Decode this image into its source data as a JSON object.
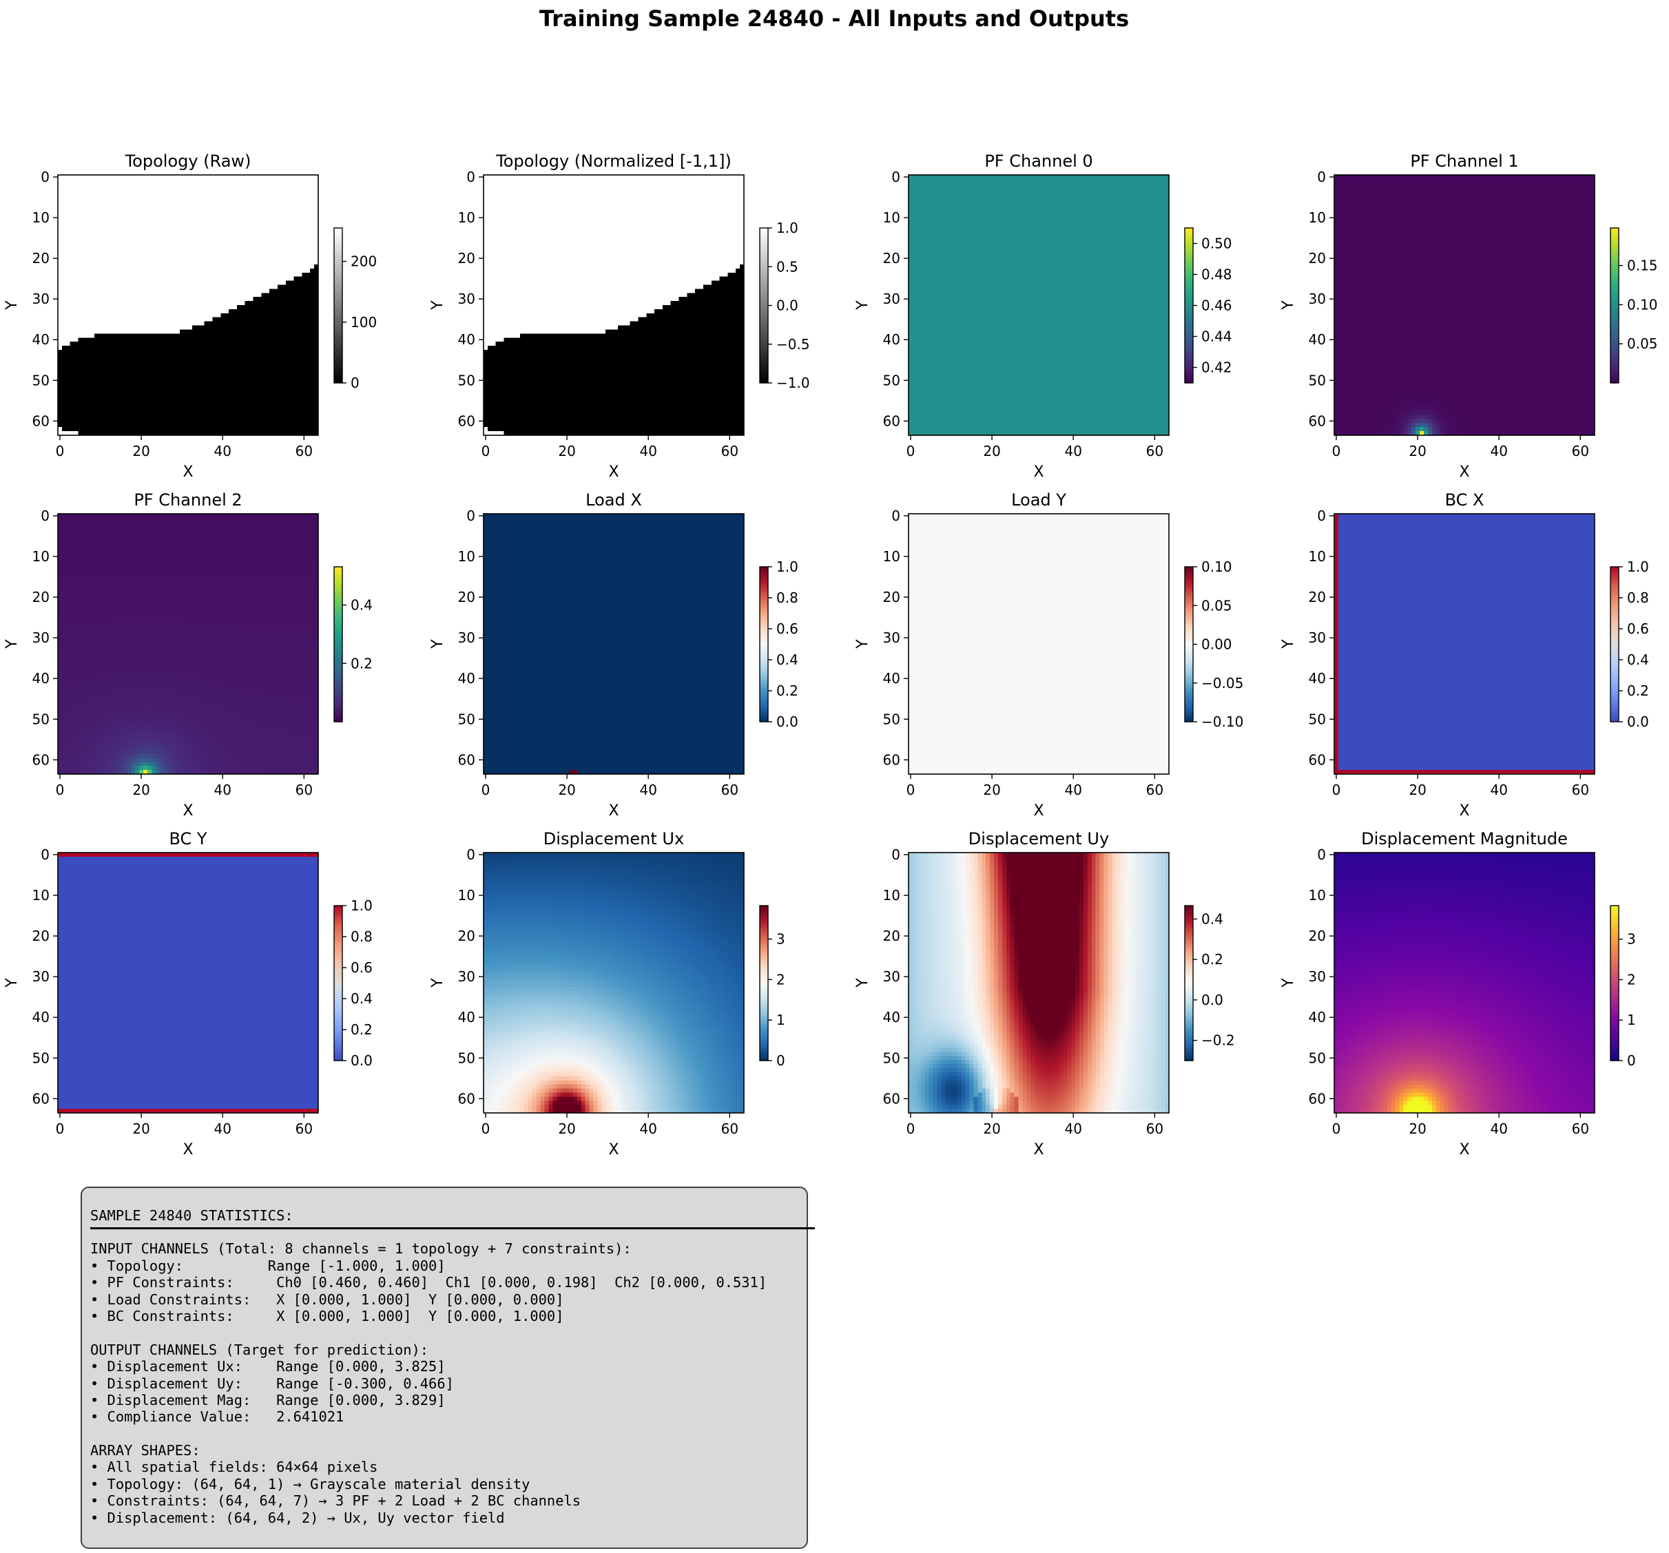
{
  "title": "Training Sample 24840 - All Inputs and Outputs",
  "panels": [
    {
      "title": "Topology (Raw)",
      "kind": "topo",
      "cmap": "gray",
      "cbar_ticks": [
        "0",
        "100",
        "200"
      ],
      "vmin": 0,
      "vmax": 255,
      "interface_row_by_col": [
        43,
        42,
        42,
        41,
        41,
        40,
        40,
        40,
        40,
        39,
        39,
        39,
        39,
        39,
        39,
        39,
        39,
        39,
        39,
        39,
        39,
        39,
        39,
        39,
        39,
        39,
        39,
        39,
        39,
        39,
        38,
        38,
        38,
        37,
        37,
        37,
        36,
        36,
        35,
        35,
        34,
        34,
        33,
        33,
        32,
        32,
        31,
        31,
        30,
        30,
        29,
        29,
        28,
        28,
        27,
        27,
        26,
        26,
        25,
        25,
        24,
        24,
        23,
        22
      ],
      "corner_white_cells": [
        [
          62,
          0
        ],
        [
          63,
          0
        ],
        [
          63,
          1
        ],
        [
          63,
          2
        ],
        [
          63,
          3
        ],
        [
          63,
          4
        ]
      ]
    },
    {
      "title": "Topology (Normalized [-1,1])",
      "kind": "topo",
      "cmap": "gray",
      "cbar_ticks": [
        "−1.0",
        "−0.5",
        "0.0",
        "0.5",
        "1.0"
      ],
      "vmin": -1,
      "vmax": 1
    },
    {
      "title": "PF Channel 0",
      "kind": "const",
      "cmap": "viridis",
      "value": 0.46,
      "vmin": 0.41,
      "vmax": 0.51,
      "cbar_ticks": [
        "0.42",
        "0.44",
        "0.46",
        "0.48",
        "0.50"
      ]
    },
    {
      "title": "PF Channel 1",
      "kind": "pf1",
      "cmap": "viridis",
      "vmin": 0,
      "vmax": 0.198,
      "load_col": 21,
      "cbar_ticks": [
        "0.05",
        "0.10",
        "0.15"
      ]
    },
    {
      "title": "PF Channel 2",
      "kind": "pf2",
      "cmap": "viridis",
      "vmin": 0,
      "vmax": 0.531,
      "load_col": 21,
      "cbar_ticks": [
        "0.2",
        "0.4"
      ]
    },
    {
      "title": "Load X",
      "kind": "loadx",
      "cmap": "RdBu_r",
      "vmin": 0,
      "vmax": 1,
      "load_col": 21,
      "cbar_ticks": [
        "0.0",
        "0.2",
        "0.4",
        "0.6",
        "0.8",
        "1.0"
      ]
    },
    {
      "title": "Load Y",
      "kind": "const",
      "cmap": "RdBu_r",
      "value": 0,
      "vmin": -0.1,
      "vmax": 0.1,
      "cbar_ticks": [
        "−0.10",
        "−0.05",
        "0.00",
        "0.05",
        "0.10"
      ]
    },
    {
      "title": "BC X",
      "kind": "bcx",
      "cmap": "coolwarm",
      "vmin": 0,
      "vmax": 1,
      "cbar_ticks": [
        "0.0",
        "0.2",
        "0.4",
        "0.6",
        "0.8",
        "1.0"
      ]
    },
    {
      "title": "BC Y",
      "kind": "bcy",
      "cmap": "coolwarm",
      "vmin": 0,
      "vmax": 1,
      "cbar_ticks": [
        "0.0",
        "0.2",
        "0.4",
        "0.6",
        "0.8",
        "1.0"
      ]
    },
    {
      "title": "Displacement Ux",
      "kind": "ux",
      "cmap": "RdBu_r",
      "vmin": 0,
      "vmax": 3.825,
      "cbar_ticks": [
        "0",
        "1",
        "2",
        "3"
      ]
    },
    {
      "title": "Displacement Uy",
      "kind": "uy",
      "cmap": "RdBu_r",
      "vmin": -0.3,
      "vmax": 0.466,
      "cbar_ticks": [
        "−0.2",
        "0.0",
        "0.2",
        "0.4"
      ]
    },
    {
      "title": "Displacement Magnitude",
      "kind": "mag",
      "cmap": "plasma",
      "vmin": 0,
      "vmax": 3.829,
      "cbar_ticks": [
        "0",
        "1",
        "2",
        "3"
      ]
    }
  ],
  "axes": {
    "xlabel": "X",
    "ylabel": "Y",
    "xticks": [
      "0",
      "20",
      "40",
      "60"
    ],
    "yticks": [
      "0",
      "10",
      "20",
      "30",
      "40",
      "50",
      "60"
    ],
    "grid_size": 64
  },
  "stats": {
    "header": "SAMPLE 24840 STATISTICS:",
    "lines": [
      "INPUT CHANNELS (Total: 8 channels = 1 topology + 7 constraints):",
      "• Topology:          Range [-1.000, 1.000]",
      "• PF Constraints:     Ch0 [0.460, 0.460]  Ch1 [0.000, 0.198]  Ch2 [0.000, 0.531]",
      "• Load Constraints:   X [0.000, 1.000]  Y [0.000, 0.000]",
      "• BC Constraints:     X [0.000, 1.000]  Y [0.000, 1.000]",
      "",
      "OUTPUT CHANNELS (Target for prediction):",
      "• Displacement Ux:    Range [0.000, 3.825]",
      "• Displacement Uy:    Range [-0.300, 0.466]",
      "• Displacement Mag:   Range [0.000, 3.829]",
      "• Compliance Value:   2.641021",
      "",
      "ARRAY SHAPES:",
      "• All spatial fields: 64×64 pixels",
      "• Topology: (64, 64, 1) → Grayscale material density",
      "• Constraints: (64, 64, 7) → 3 PF + 2 Load + 2 BC channels",
      "• Displacement: (64, 64, 2) → Ux, Uy vector field"
    ]
  },
  "chart_data": {
    "type": "heatmap",
    "title": "Training Sample 24840 - All Inputs and Outputs",
    "grid": [
      64,
      64
    ],
    "xlabel": "X",
    "ylabel": "Y",
    "xlim": [
      0,
      63
    ],
    "ylim": [
      63,
      0
    ],
    "series": [
      {
        "name": "Topology (Raw)",
        "range": [
          0,
          255
        ]
      },
      {
        "name": "Topology (Normalized [-1,1])",
        "range": [
          -1.0,
          1.0
        ]
      },
      {
        "name": "PF Channel 0",
        "range": [
          0.46,
          0.46
        ]
      },
      {
        "name": "PF Channel 1",
        "range": [
          0.0,
          0.198
        ]
      },
      {
        "name": "PF Channel 2",
        "range": [
          0.0,
          0.531
        ]
      },
      {
        "name": "Load X",
        "range": [
          0.0,
          1.0
        ]
      },
      {
        "name": "Load Y",
        "range": [
          0.0,
          0.0
        ]
      },
      {
        "name": "BC X",
        "range": [
          0.0,
          1.0
        ]
      },
      {
        "name": "BC Y",
        "range": [
          0.0,
          1.0
        ]
      },
      {
        "name": "Displacement Ux",
        "range": [
          0.0,
          3.825
        ]
      },
      {
        "name": "Displacement Uy",
        "range": [
          -0.3,
          0.466
        ]
      },
      {
        "name": "Displacement Magnitude",
        "range": [
          0.0,
          3.829
        ]
      }
    ]
  }
}
